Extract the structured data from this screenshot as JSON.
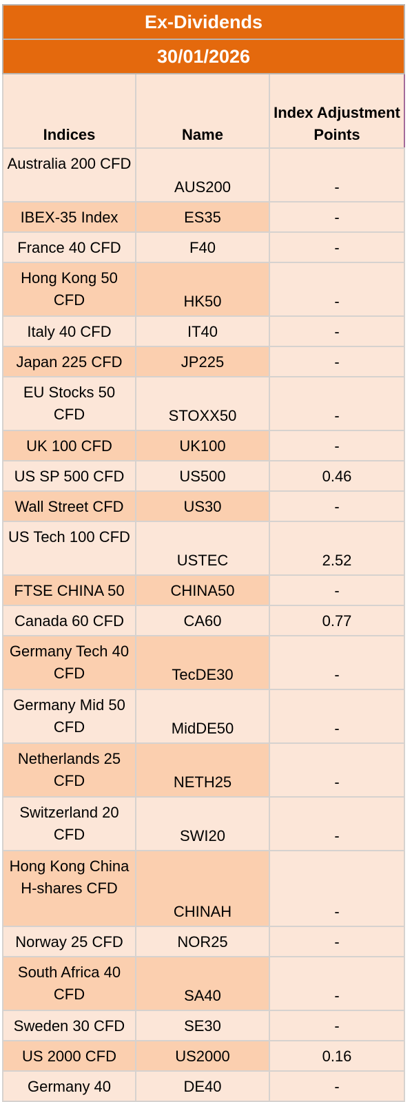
{
  "title": "Ex-Dividends",
  "date": "30/01/2026",
  "columns": {
    "indices": "Indices",
    "name": "Name",
    "adjustment": "Index Adjustment Points"
  },
  "rows": [
    {
      "index": "Australia 200 CFD",
      "name": "AUS200",
      "points": "-"
    },
    {
      "index": "IBEX-35 Index",
      "name": "ES35",
      "points": "-"
    },
    {
      "index": "France 40 CFD",
      "name": "F40",
      "points": "-"
    },
    {
      "index": "Hong Kong 50 CFD",
      "name": "HK50",
      "points": "-"
    },
    {
      "index": "Italy 40 CFD",
      "name": "IT40",
      "points": "-"
    },
    {
      "index": "Japan 225 CFD",
      "name": "JP225",
      "points": "-"
    },
    {
      "index": "EU Stocks 50 CFD",
      "name": "STOXX50",
      "points": "-"
    },
    {
      "index": "UK 100 CFD",
      "name": "UK100",
      "points": "-"
    },
    {
      "index": "US SP 500 CFD",
      "name": "US500",
      "points": "0.46"
    },
    {
      "index": "Wall Street CFD",
      "name": "US30",
      "points": "-"
    },
    {
      "index": "US Tech 100 CFD",
      "name": "USTEC",
      "points": "2.52"
    },
    {
      "index": "FTSE CHINA 50",
      "name": "CHINA50",
      "points": "-"
    },
    {
      "index": "Canada 60 CFD",
      "name": "CA60",
      "points": "0.77"
    },
    {
      "index": "Germany Tech 40 CFD",
      "name": "TecDE30",
      "points": "-"
    },
    {
      "index": "Germany Mid 50 CFD",
      "name": "MidDE50",
      "points": "-"
    },
    {
      "index": "Netherlands 25 CFD",
      "name": "NETH25",
      "points": "-"
    },
    {
      "index": "Switzerland 20 CFD",
      "name": "SWI20",
      "points": "-"
    },
    {
      "index": "Hong Kong China H-shares CFD",
      "name": "CHINAH",
      "points": "-"
    },
    {
      "index": "Norway 25 CFD",
      "name": "NOR25",
      "points": "-"
    },
    {
      "index": "South Africa 40 CFD",
      "name": "SA40",
      "points": "-"
    },
    {
      "index": "Sweden 30 CFD",
      "name": "SE30",
      "points": "-"
    },
    {
      "index": "US 2000 CFD",
      "name": "US2000",
      "points": "0.16"
    },
    {
      "index": "Germany 40",
      "name": "DE40",
      "points": "-"
    }
  ]
}
